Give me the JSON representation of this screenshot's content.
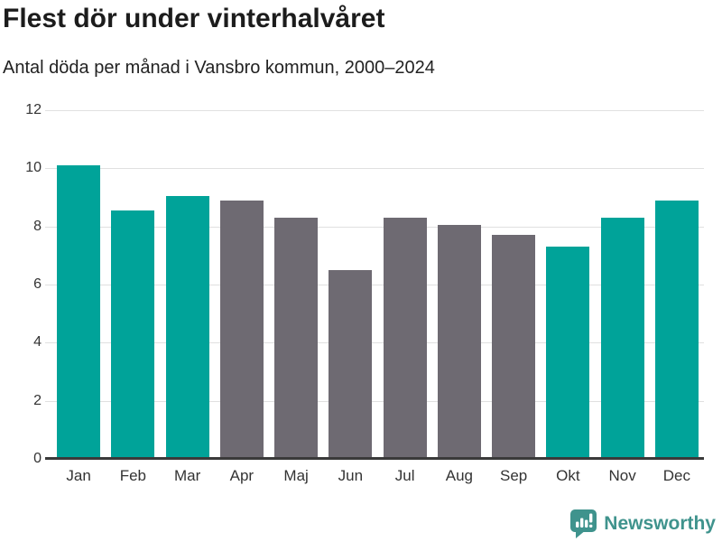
{
  "header": {
    "title": "Flest dör under vinterhalvåret",
    "subtitle": "Antal döda per månad i Vansbro kommun, 2000–2024"
  },
  "chart_data": {
    "type": "bar",
    "categories": [
      "Jan",
      "Feb",
      "Mar",
      "Apr",
      "Maj",
      "Jun",
      "Jul",
      "Aug",
      "Sep",
      "Okt",
      "Nov",
      "Dec"
    ],
    "values": [
      10.1,
      8.55,
      9.05,
      8.9,
      8.3,
      6.5,
      8.3,
      8.05,
      7.7,
      7.3,
      8.3,
      8.9
    ],
    "bar_colors": [
      "#00a399",
      "#00a399",
      "#00a399",
      "#6e6a72",
      "#6e6a72",
      "#6e6a72",
      "#6e6a72",
      "#6e6a72",
      "#6e6a72",
      "#00a399",
      "#00a399",
      "#00a399"
    ],
    "title": "Flest dör under vinterhalvåret",
    "subtitle": "Antal döda per månad i Vansbro kommun, 2000–2024",
    "xlabel": "",
    "ylabel": "",
    "ylim": [
      0,
      12
    ],
    "yticks": [
      0,
      2,
      4,
      6,
      8,
      10,
      12
    ],
    "grid": true,
    "legend_position": "none",
    "highlight_color_meaning": "teal bars = winter half-year months (Jan, Feb, Mar, Okt, Nov, Dec); gray bars = summer half-year months"
  },
  "colors": {
    "accent_teal": "#00a399",
    "neutral_gray": "#6e6a72",
    "gridline": "#e0e0e0",
    "axis_line": "#3a3a3a",
    "title_text": "#1c1c1c",
    "tick_text": "#333333",
    "brand_teal": "#3f938d"
  },
  "footer": {
    "brand": "Newsworthy",
    "icon": "bar-chart-speech-bubble-icon"
  }
}
